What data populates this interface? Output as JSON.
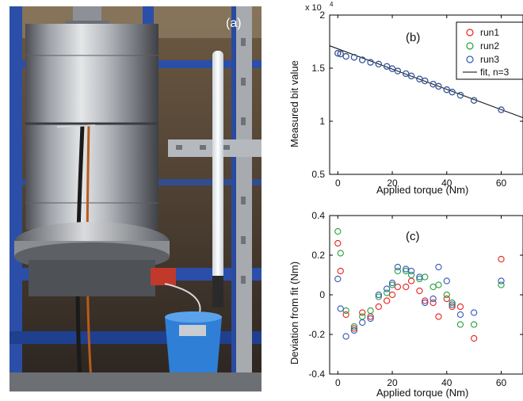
{
  "panels": {
    "a": {
      "label": "(a)",
      "description": "photograph of cylindrical torque sensor rig on blue steel frame"
    },
    "b": {
      "label": "(b)"
    },
    "c": {
      "label": "(c)"
    }
  },
  "chart_data": [
    {
      "type": "scatter",
      "panel": "(b)",
      "xlabel": "Applied torque (Nm)",
      "ylabel": "Measured bit value",
      "y_exponent_label": "x 10",
      "y_exponent": "4",
      "xlim": [
        -3,
        68
      ],
      "ylim": [
        0.5,
        2.0
      ],
      "xticks": [
        "0",
        "20",
        "40",
        "60"
      ],
      "xtick_values": [
        0,
        20,
        40,
        60
      ],
      "yticks": [
        "0.5",
        "1",
        "1.5",
        "2"
      ],
      "ytick_values": [
        0.5,
        1.0,
        1.5,
        2.0
      ],
      "legend_position": "top-right",
      "legend": [
        "run1",
        "run2",
        "run3",
        "fit, n=3"
      ],
      "fit": {
        "name": "fit, n=3",
        "intercept": 1.682,
        "slope": -0.00954,
        "color": "#000000"
      },
      "series": [
        {
          "name": "run1",
          "color": "#e8221c",
          "x": [
            0,
            1,
            3,
            6,
            9,
            12,
            15,
            18,
            20,
            22,
            25,
            27,
            30,
            32,
            35,
            37,
            40,
            42,
            45,
            50,
            60
          ],
          "y": [
            1.64,
            1.634,
            1.611,
            1.602,
            1.578,
            1.555,
            1.538,
            1.516,
            1.495,
            1.473,
            1.448,
            1.426,
            1.398,
            1.38,
            1.349,
            1.329,
            1.297,
            1.275,
            1.245,
            1.196,
            1.108
          ]
        },
        {
          "name": "run2",
          "color": "#23a23b",
          "x": [
            0,
            1,
            3,
            6,
            9,
            12,
            15,
            18,
            20,
            22,
            25,
            27,
            30,
            32,
            35,
            37,
            40,
            42,
            45,
            50,
            60
          ],
          "y": [
            1.64,
            1.634,
            1.611,
            1.602,
            1.578,
            1.555,
            1.538,
            1.516,
            1.495,
            1.473,
            1.448,
            1.426,
            1.398,
            1.38,
            1.349,
            1.329,
            1.297,
            1.275,
            1.245,
            1.196,
            1.108
          ]
        },
        {
          "name": "run3",
          "color": "#3457b8",
          "x": [
            0,
            1,
            3,
            6,
            9,
            12,
            15,
            18,
            20,
            22,
            25,
            27,
            30,
            32,
            35,
            37,
            40,
            42,
            45,
            50,
            60
          ],
          "y": [
            1.64,
            1.634,
            1.611,
            1.602,
            1.578,
            1.555,
            1.538,
            1.516,
            1.495,
            1.473,
            1.448,
            1.426,
            1.398,
            1.38,
            1.349,
            1.329,
            1.297,
            1.275,
            1.245,
            1.196,
            1.108
          ]
        }
      ]
    },
    {
      "type": "scatter",
      "panel": "(c)",
      "xlabel": "Applied torque (Nm)",
      "ylabel": "Deviation from fit (Nm)",
      "xlim": [
        -3,
        68
      ],
      "ylim": [
        -0.4,
        0.4
      ],
      "xticks": [
        "0",
        "20",
        "40",
        "60"
      ],
      "xtick_values": [
        0,
        20,
        40,
        60
      ],
      "yticks": [
        "-0.4",
        "-0.2",
        "0",
        "0.2",
        "0.4"
      ],
      "ytick_values": [
        -0.4,
        -0.2,
        0,
        0.2,
        0.4
      ],
      "series": [
        {
          "name": "run1",
          "color": "#e8221c",
          "x": [
            0,
            1,
            3,
            6,
            9,
            12,
            15,
            18,
            20,
            22,
            25,
            27,
            30,
            32,
            35,
            37,
            40,
            42,
            45,
            50,
            60
          ],
          "y": [
            0.26,
            0.12,
            -0.1,
            -0.17,
            -0.09,
            -0.11,
            -0.06,
            -0.03,
            0.0,
            0.04,
            0.04,
            0.07,
            0.02,
            -0.03,
            -0.04,
            -0.11,
            -0.02,
            -0.06,
            -0.06,
            -0.22,
            0.18
          ]
        },
        {
          "name": "run2",
          "color": "#23a23b",
          "x": [
            0,
            1,
            3,
            6,
            9,
            12,
            15,
            18,
            20,
            22,
            25,
            27,
            30,
            32,
            35,
            37,
            40,
            42,
            45,
            50,
            60
          ],
          "y": [
            0.32,
            0.21,
            -0.08,
            -0.16,
            -0.11,
            -0.08,
            -0.01,
            0.01,
            0.05,
            0.12,
            0.12,
            0.1,
            0.08,
            0.09,
            0.04,
            0.05,
            0.0,
            -0.04,
            -0.15,
            -0.15,
            0.05
          ]
        },
        {
          "name": "run3",
          "color": "#3457b8",
          "x": [
            0,
            1,
            3,
            6,
            9,
            12,
            15,
            18,
            20,
            22,
            25,
            27,
            30,
            32,
            35,
            37,
            40,
            42,
            45,
            50,
            60
          ],
          "y": [
            0.08,
            -0.07,
            -0.21,
            -0.18,
            -0.14,
            -0.12,
            0.0,
            0.03,
            0.06,
            0.14,
            0.13,
            0.12,
            0.09,
            -0.04,
            -0.02,
            0.14,
            0.07,
            -0.05,
            -0.1,
            -0.09,
            0.07
          ]
        }
      ]
    }
  ]
}
